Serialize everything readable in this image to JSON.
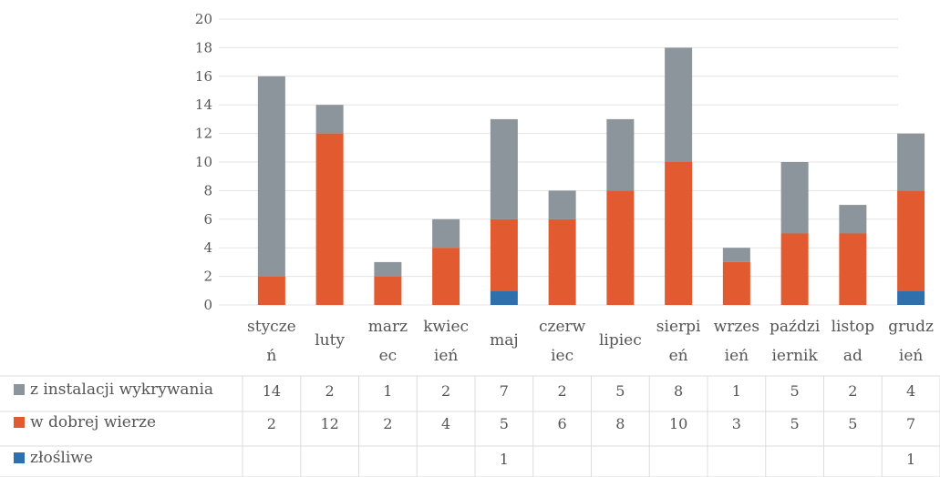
{
  "chart_data": {
    "type": "bar",
    "stacked": true,
    "categories": [
      "styczeń",
      "luty",
      "marzec",
      "kwiecień",
      "maj",
      "czerwiec",
      "lipiec",
      "sierpień",
      "wrzesień",
      "październik",
      "listopad",
      "grudzień"
    ],
    "category_label_lines": [
      [
        "stycze",
        "ń"
      ],
      [
        "luty"
      ],
      [
        "marz",
        "ec"
      ],
      [
        "kwiec",
        "ień"
      ],
      [
        "maj"
      ],
      [
        "czerw",
        "iec"
      ],
      [
        "lipiec"
      ],
      [
        "sierpi",
        "eń"
      ],
      [
        "wrzes",
        "ień"
      ],
      [
        "paździ",
        "iernik"
      ],
      [
        "listop",
        "ad"
      ],
      [
        "grudz",
        "ień"
      ]
    ],
    "series": [
      {
        "name": "złośliwe",
        "color": "#2e6fad",
        "values": [
          null,
          null,
          null,
          null,
          1,
          null,
          null,
          null,
          null,
          null,
          null,
          1
        ]
      },
      {
        "name": "w dobrej wierze",
        "color": "#e15a30",
        "values": [
          2,
          12,
          2,
          4,
          5,
          6,
          8,
          10,
          3,
          5,
          5,
          7
        ]
      },
      {
        "name": "z instalacji wykrywania",
        "color": "#8c949c",
        "values": [
          14,
          2,
          1,
          2,
          7,
          2,
          5,
          8,
          1,
          5,
          2,
          4
        ]
      }
    ],
    "table_rows": [
      {
        "name": "z instalacji wykrywania",
        "color": "#8c949c",
        "values": [
          "14",
          "2",
          "1",
          "2",
          "7",
          "2",
          "5",
          "8",
          "1",
          "5",
          "2",
          "4"
        ]
      },
      {
        "name": "w dobrej wierze",
        "color": "#e15a30",
        "values": [
          "2",
          "12",
          "2",
          "4",
          "5",
          "6",
          "8",
          "10",
          "3",
          "5",
          "5",
          "7"
        ]
      },
      {
        "name": "złośliwe",
        "color": "#2e6fad",
        "values": [
          "",
          "",
          "",
          "",
          "1",
          "",
          "",
          "",
          "",
          "",
          "",
          "1"
        ]
      }
    ],
    "ylim": [
      0,
      20
    ],
    "yticks": [
      0,
      2,
      4,
      6,
      8,
      10,
      12,
      14,
      16,
      18,
      20
    ],
    "grid": true,
    "legend": "data table below chart"
  }
}
